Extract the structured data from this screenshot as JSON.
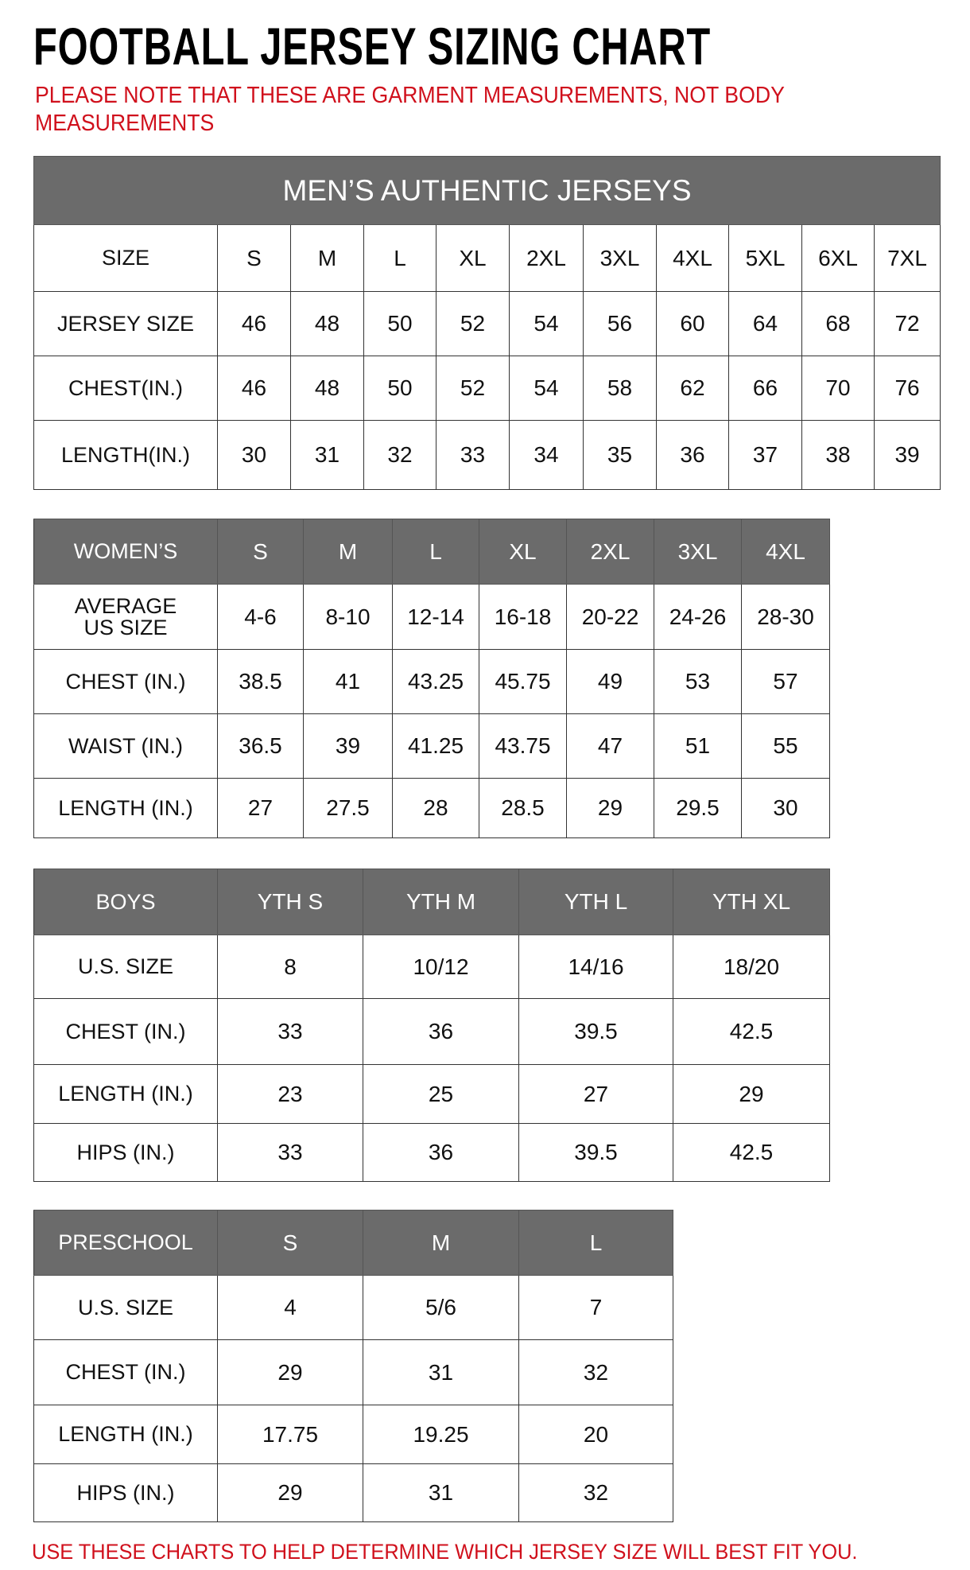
{
  "title": "FOOTBALL JERSEY SIZING CHART",
  "note_line1": "PLEASE NOTE THAT THESE ARE GARMENT MEASUREMENTS, NOT BODY",
  "note_line2": "MEASUREMENTS",
  "footer": "USE THESE CHARTS TO HELP DETERMINE WHICH JERSEY SIZE WILL BEST FIT YOU.",
  "colors": {
    "header_bg": "#6b6b6b",
    "note_red": "#d0101c"
  },
  "tables": [
    {
      "caption": "MEN’S AUTHENTIC JERSEYS",
      "header": [
        "SIZE",
        "S",
        "M",
        "L",
        "XL",
        "2XL",
        "3XL",
        "4XL",
        "5XL",
        "6XL",
        "7XL"
      ],
      "header_gray": false,
      "rows": [
        [
          "JERSEY SIZE",
          "46",
          "48",
          "50",
          "52",
          "54",
          "56",
          "60",
          "64",
          "68",
          "72"
        ],
        [
          "CHEST(IN.)",
          "46",
          "48",
          "50",
          "52",
          "54",
          "58",
          "62",
          "66",
          "70",
          "76"
        ],
        [
          "LENGTH(IN.)",
          "30",
          "31",
          "32",
          "33",
          "34",
          "35",
          "36",
          "37",
          "38",
          "39"
        ]
      ]
    },
    {
      "header": [
        "WOMEN’S",
        "S",
        "M",
        "L",
        "XL",
        "2XL",
        "3XL",
        "4XL"
      ],
      "header_gray": true,
      "rows": [
        [
          "AVERAGE\nUS SIZE",
          "4-6",
          "8-10",
          "12-14",
          "16-18",
          "20-22",
          "24-26",
          "28-30"
        ],
        [
          "CHEST (IN.)",
          "38.5",
          "41",
          "43.25",
          "45.75",
          "49",
          "53",
          "57"
        ],
        [
          "WAIST (IN.)",
          "36.5",
          "39",
          "41.25",
          "43.75",
          "47",
          "51",
          "55"
        ],
        [
          "LENGTH (IN.)",
          "27",
          "27.5",
          "28",
          "28.5",
          "29",
          "29.5",
          "30"
        ]
      ]
    },
    {
      "header": [
        "BOYS",
        "YTH S",
        "YTH M",
        "YTH L",
        "YTH XL"
      ],
      "header_gray": true,
      "rows": [
        [
          "U.S. SIZE",
          "8",
          "10/12",
          "14/16",
          "18/20"
        ],
        [
          "CHEST (IN.)",
          "33",
          "36",
          "39.5",
          "42.5"
        ],
        [
          "LENGTH (IN.)",
          "23",
          "25",
          "27",
          "29"
        ],
        [
          "HIPS (IN.)",
          "33",
          "36",
          "39.5",
          "42.5"
        ]
      ]
    },
    {
      "header": [
        "PRESCHOOL",
        "S",
        "M",
        "L"
      ],
      "header_gray": true,
      "rows": [
        [
          "U.S. SIZE",
          "4",
          "5/6",
          "7"
        ],
        [
          "CHEST (IN.)",
          "29",
          "31",
          "32"
        ],
        [
          "LENGTH (IN.)",
          "17.75",
          "19.25",
          "20"
        ],
        [
          "HIPS (IN.)",
          "29",
          "31",
          "32"
        ]
      ]
    }
  ]
}
